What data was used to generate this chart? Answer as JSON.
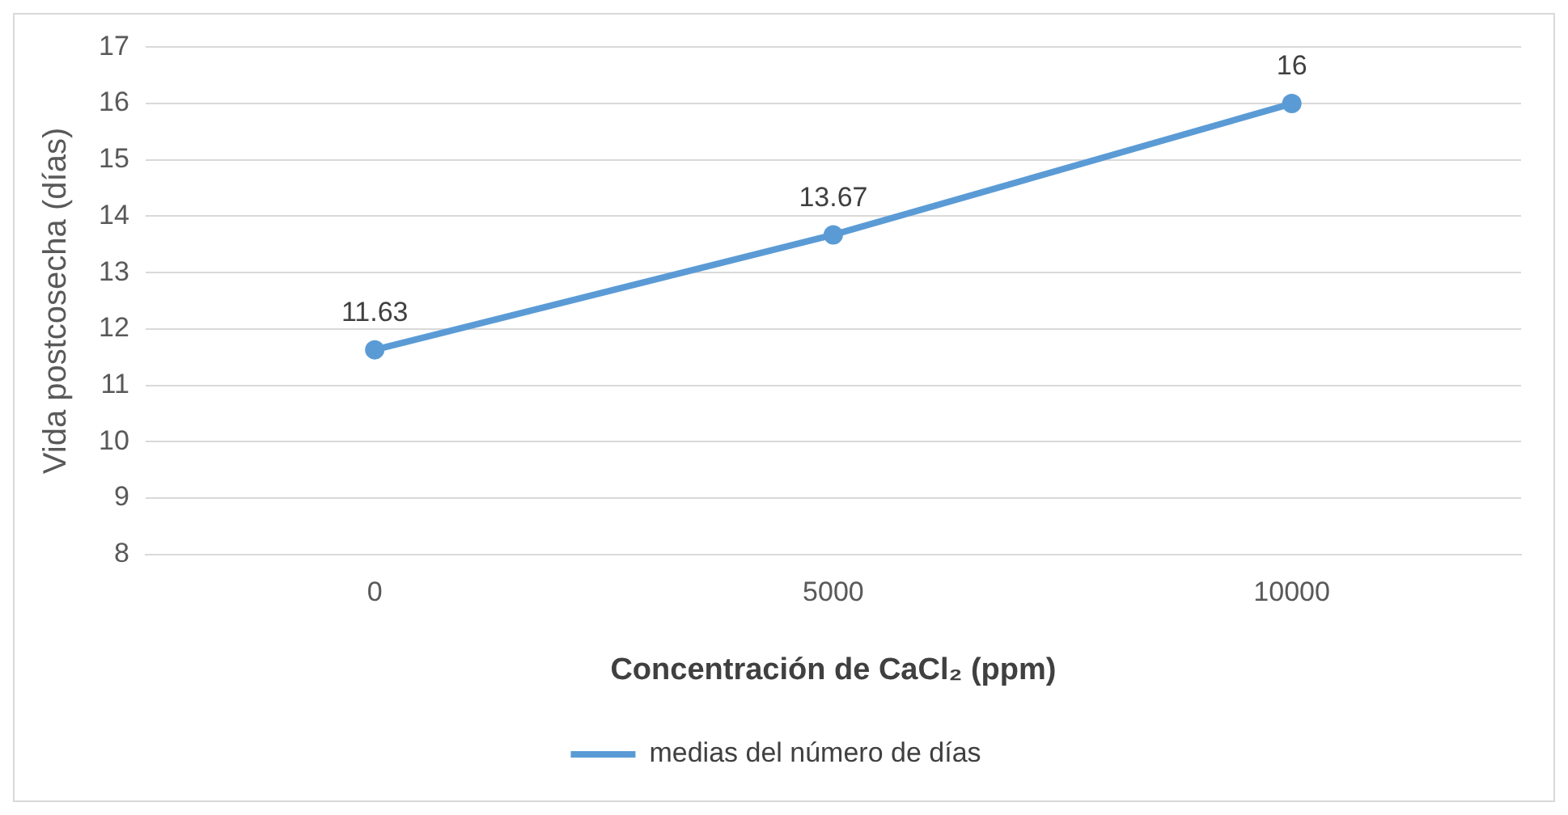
{
  "chart_data": {
    "type": "line",
    "xlabel": "Concentración de CaCl₂ (ppm)",
    "ylabel": "Vida postcosecha (días)",
    "categories": [
      "0",
      "5000",
      "10000"
    ],
    "series": [
      {
        "name": "medias del número de días",
        "color": "#5b9bd5",
        "values": [
          11.63,
          13.67,
          16
        ]
      }
    ],
    "ylim": [
      8,
      17
    ],
    "yticks": [
      8,
      9,
      10,
      11,
      12,
      13,
      14,
      15,
      16,
      17
    ],
    "grid": "y",
    "legend": "bottom",
    "marker": "circle",
    "line_style": "solid",
    "data_labels": true
  }
}
